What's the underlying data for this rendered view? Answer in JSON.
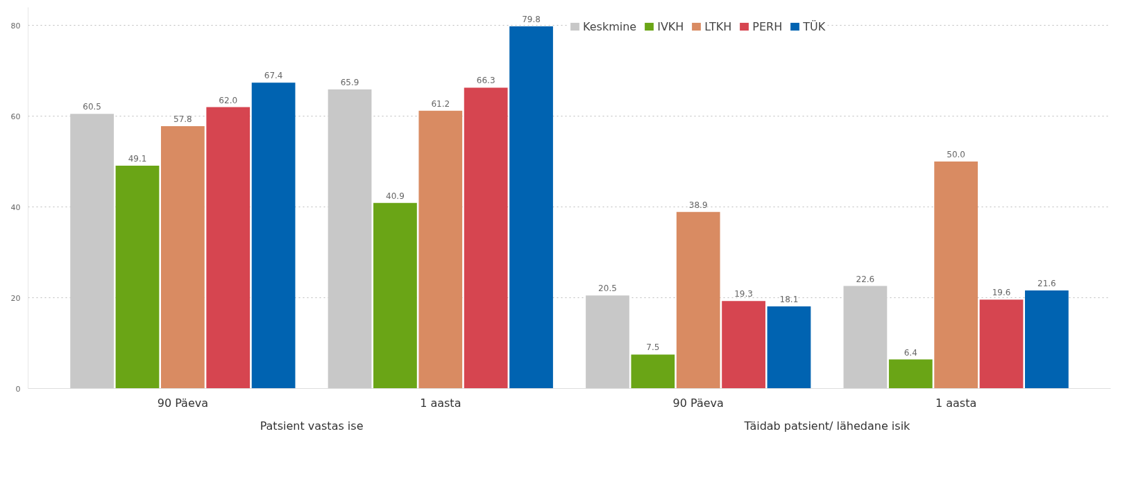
{
  "chart_data": {
    "type": "bar",
    "categories": [
      "90 Päeva",
      "1 aasta",
      "90 Päeva",
      "1 aasta"
    ],
    "annotations": [
      "Patsient vastas ise",
      "Täidab patsient/ lähedane isik"
    ],
    "series": [
      {
        "name": "Keskmine",
        "color": "#c8c8c8",
        "values": [
          60.5,
          65.9,
          20.5,
          22.6
        ],
        "value_labels": [
          "60.5",
          "65.9",
          "20.5",
          "22.6"
        ]
      },
      {
        "name": "IVKH",
        "color": "#6aa516",
        "values": [
          49.1,
          40.9,
          7.5,
          6.4
        ],
        "value_labels": [
          "49.1",
          "40.9",
          "7.5",
          "6.4"
        ]
      },
      {
        "name": "LTKH",
        "color": "#d98b62",
        "values": [
          57.8,
          61.2,
          38.9,
          50.0
        ],
        "value_labels": [
          "57.8",
          "61.2",
          "38.9",
          "50.0"
        ]
      },
      {
        "name": "PERH",
        "color": "#d64550",
        "values": [
          62.0,
          66.3,
          19.3,
          19.6
        ],
        "value_labels": [
          "62.0",
          "66.3",
          "19.3",
          "19.6"
        ]
      },
      {
        "name": "TÜK",
        "color": "#0063b1",
        "values": [
          67.4,
          79.8,
          18.1,
          21.6
        ],
        "value_labels": [
          "67.4",
          "79.8",
          "18.1",
          "21.6"
        ]
      }
    ],
    "ylim": [
      0,
      84
    ],
    "yticks": [
      0,
      20,
      40,
      60,
      80
    ],
    "grid": "y",
    "legend": "top"
  }
}
